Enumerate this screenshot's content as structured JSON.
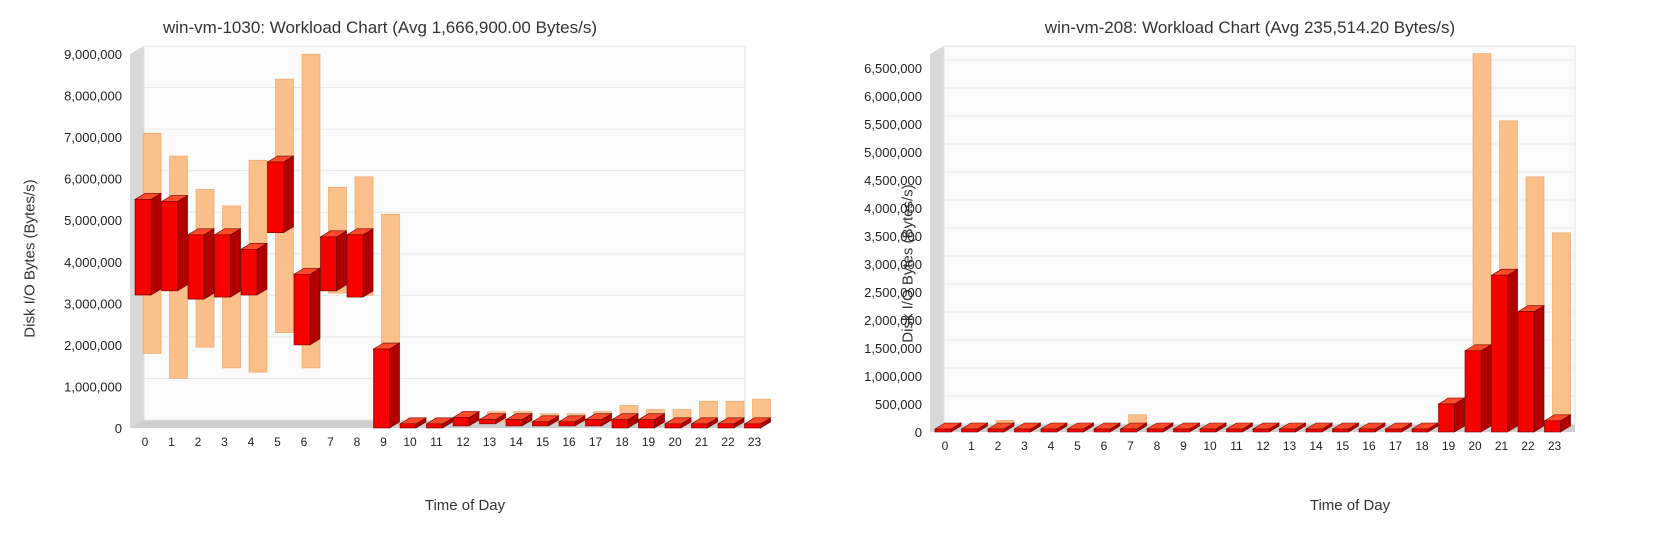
{
  "chart_data": [
    {
      "type": "bar",
      "title": "win-vm-1030: Workload Chart (Avg 1,666,900.00 Bytes/s)",
      "xlabel": "Time of Day",
      "ylabel": "Disk I/O Bytes (Bytes/s)",
      "ylim": [
        0,
        9000000
      ],
      "yticks": [
        "0",
        "1,000,000",
        "2,000,000",
        "3,000,000",
        "4,000,000",
        "5,000,000",
        "6,000,000",
        "7,000,000",
        "8,000,000",
        "9,000,000"
      ],
      "categories": [
        "0",
        "1",
        "2",
        "3",
        "4",
        "5",
        "6",
        "7",
        "8",
        "9",
        "10",
        "11",
        "12",
        "13",
        "14",
        "15",
        "16",
        "17",
        "18",
        "19",
        "20",
        "21",
        "22",
        "23"
      ],
      "series": [
        {
          "role": "range",
          "low": [
            1650000,
            1050000,
            1800000,
            1300000,
            1200000,
            2150000,
            1300000,
            3100000,
            3050000,
            0,
            0,
            0,
            0,
            0,
            0,
            0,
            0,
            0,
            0,
            0,
            0,
            0,
            0,
            0
          ],
          "high": [
            6950000,
            6400000,
            5600000,
            5200000,
            6300000,
            8250000,
            8850000,
            5650000,
            5900000,
            5000000,
            100000,
            100000,
            250000,
            250000,
            250000,
            200000,
            200000,
            250000,
            400000,
            300000,
            300000,
            500000,
            500000,
            550000
          ]
        },
        {
          "role": "box",
          "low": [
            3200000,
            3300000,
            3100000,
            3150000,
            3200000,
            4700000,
            2000000,
            3300000,
            3150000,
            0,
            0,
            0,
            50000,
            100000,
            50000,
            50000,
            50000,
            50000,
            0,
            0,
            0,
            0,
            0,
            0
          ],
          "high": [
            5500000,
            5450000,
            4650000,
            4650000,
            4300000,
            6400000,
            3700000,
            4600000,
            4650000,
            1900000,
            100000,
            100000,
            250000,
            200000,
            200000,
            150000,
            150000,
            200000,
            200000,
            200000,
            100000,
            100000,
            100000,
            100000
          ]
        }
      ]
    },
    {
      "type": "bar",
      "title": "win-vm-208: Workload Chart (Avg 235,514.20 Bytes/s)",
      "xlabel": "Time of Day",
      "ylabel": "Disk I/O Bytes (Bytes/s)",
      "ylim": [
        0,
        6750000
      ],
      "yticks": [
        "0",
        "500,000",
        "1,000,000",
        "1,500,000",
        "2,000,000",
        "2,500,000",
        "3,000,000",
        "3,500,000",
        "4,000,000",
        "4,500,000",
        "5,000,000",
        "5,500,000",
        "6,000,000",
        "6,500,000"
      ],
      "categories": [
        "0",
        "1",
        "2",
        "3",
        "4",
        "5",
        "6",
        "7",
        "8",
        "9",
        "10",
        "11",
        "12",
        "13",
        "14",
        "15",
        "16",
        "17",
        "18",
        "19",
        "20",
        "21",
        "22",
        "23"
      ],
      "series": [
        {
          "role": "range",
          "low": [
            0,
            0,
            0,
            0,
            0,
            0,
            0,
            0,
            0,
            0,
            0,
            0,
            0,
            0,
            0,
            0,
            0,
            0,
            0,
            0,
            0,
            0,
            0,
            0
          ],
          "high": [
            0,
            50000,
            100000,
            0,
            0,
            0,
            0,
            200000,
            0,
            0,
            0,
            0,
            0,
            0,
            0,
            0,
            0,
            0,
            0,
            500000,
            6650000,
            5450000,
            4450000,
            3450000
          ]
        },
        {
          "role": "box",
          "low": [
            0,
            0,
            0,
            0,
            0,
            0,
            0,
            0,
            0,
            0,
            0,
            0,
            0,
            0,
            0,
            0,
            0,
            0,
            0,
            0,
            0,
            0,
            0,
            0
          ],
          "high": [
            0,
            0,
            0,
            0,
            0,
            0,
            0,
            0,
            0,
            0,
            0,
            0,
            0,
            0,
            0,
            0,
            0,
            0,
            0,
            500000,
            1450000,
            2800000,
            2150000,
            200000
          ]
        }
      ]
    }
  ],
  "colors": {
    "range": "#fbc089",
    "range_edge": "#e8a064",
    "box_front": "#f70000",
    "box_side": "#b00000",
    "box_top": "#ff4a2a",
    "box_edge": "#6a0000",
    "wall": "#d8d8d8",
    "floor": "#cfcfcf",
    "grid": "#e8e8e8"
  }
}
